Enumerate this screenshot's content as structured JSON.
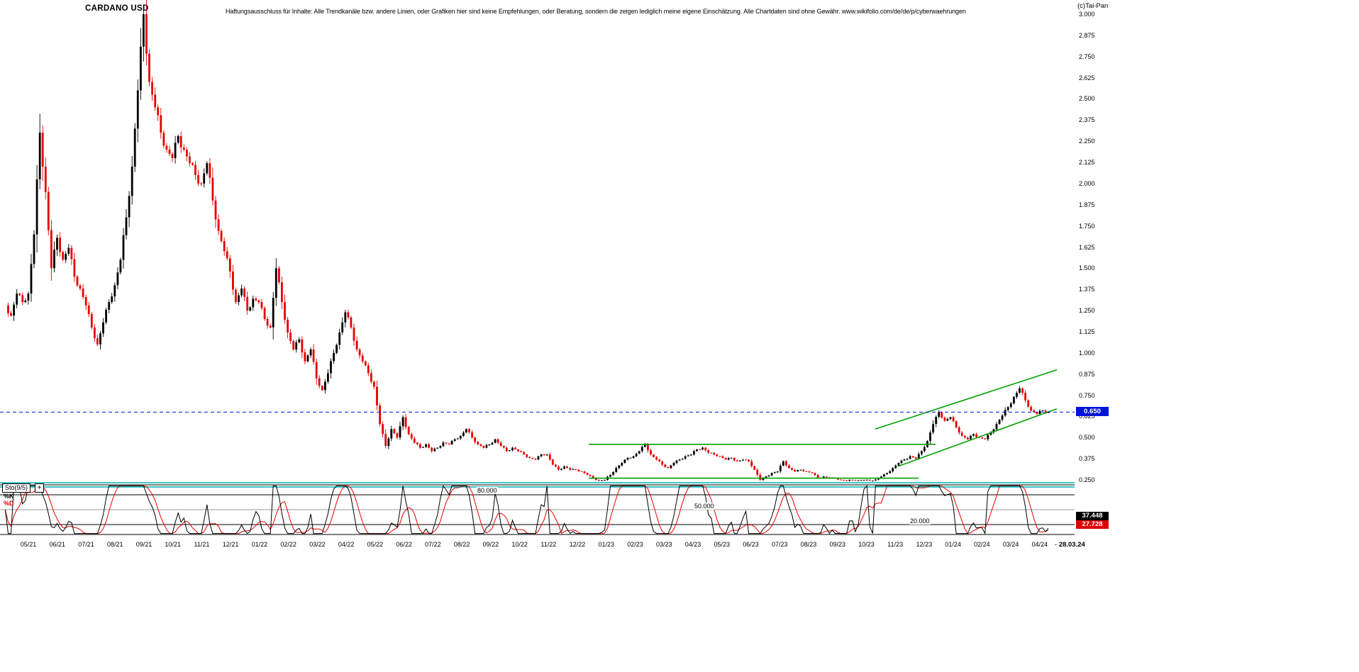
{
  "header": {
    "title": "CARDANO USD",
    "disclaimer": "Haftungsausschluss für Inhalte: Alle Trendkanäle bzw. andere Linien, oder Grafiken hier sind keine Empfehlungen, oder Beratung, sondern die zeigen lediglich meine eigene Einschätzung. Alle Chartdaten sind ohne Gewähr.  www.wikifolio.com/de/de/p/cyberwaehrungen",
    "copyright": "(c)Tai-Pan"
  },
  "price_axis": {
    "current_price_label": "0.650",
    "ticks": [
      "3.000",
      "2.875",
      "2.750",
      "2.625",
      "2.500",
      "2.375",
      "2.250",
      "2.125",
      "2.000",
      "1.875",
      "1.750",
      "1.625",
      "1.500",
      "1.375",
      "1.250",
      "1.125",
      "1.000",
      "0.875",
      "0.750",
      "0.625",
      "0.500",
      "0.375",
      "0.250"
    ]
  },
  "x_axis": {
    "labels": [
      "05/21",
      "06/21",
      "07/21",
      "08/21",
      "09/21",
      "10/21",
      "11/21",
      "12/21",
      "01/22",
      "02/22",
      "03/22",
      "04/22",
      "05/22",
      "06/22",
      "07/22",
      "08/22",
      "09/22",
      "10/22",
      "11/22",
      "12/22",
      "01/23",
      "02/23",
      "03/23",
      "04/23",
      "05/23",
      "06/23",
      "07/23",
      "08/23",
      "09/23",
      "10/23",
      "11/23",
      "12/23",
      "01/24",
      "02/24",
      "03/24",
      "04/24"
    ],
    "separator": "-",
    "end_date": "28.03.24"
  },
  "indicator": {
    "label": "Sto(9/5)",
    "expand_label": "+",
    "k_label": "%K",
    "d_label": "%D",
    "levels": [
      "80.000",
      "50.000",
      "20.000"
    ],
    "k_value": "37.448",
    "d_value": "27.728"
  },
  "chart_data": {
    "type": "candlestick",
    "title": "CARDANO USD",
    "x_unit": "months from 05/21",
    "x_labels": [
      "05/21",
      "06/21",
      "07/21",
      "08/21",
      "09/21",
      "10/21",
      "11/21",
      "12/21",
      "01/22",
      "02/22",
      "03/22",
      "04/22",
      "05/22",
      "06/22",
      "07/22",
      "08/22",
      "09/22",
      "10/22",
      "11/22",
      "12/22",
      "01/23",
      "02/23",
      "03/23",
      "04/23",
      "05/23",
      "06/23",
      "07/23",
      "08/23",
      "09/23",
      "10/23",
      "11/23",
      "12/23",
      "01/24",
      "02/24",
      "03/24",
      "04/24"
    ],
    "ylim": [
      0.25,
      3.0
    ],
    "closes": [
      1.28,
      1.22,
      1.35,
      1.3,
      1.35,
      1.7,
      2.3,
      1.95,
      1.5,
      1.68,
      1.55,
      1.62,
      1.45,
      1.38,
      1.28,
      1.15,
      1.05,
      1.18,
      1.3,
      1.4,
      1.55,
      1.8,
      2.1,
      2.55,
      3.0,
      2.6,
      2.45,
      2.3,
      2.2,
      2.15,
      2.28,
      2.2,
      2.12,
      2.05,
      2.0,
      2.12,
      1.9,
      1.72,
      1.6,
      1.48,
      1.3,
      1.38,
      1.25,
      1.32,
      1.3,
      1.2,
      1.15,
      1.5,
      1.3,
      1.12,
      1.02,
      1.08,
      0.95,
      1.02,
      0.85,
      0.78,
      0.88,
      1.0,
      1.12,
      1.24,
      1.15,
      1.02,
      0.95,
      0.88,
      0.8,
      0.58,
      0.45,
      0.55,
      0.5,
      0.62,
      0.52,
      0.47,
      0.44,
      0.46,
      0.42,
      0.44,
      0.47,
      0.46,
      0.49,
      0.51,
      0.55,
      0.5,
      0.46,
      0.44,
      0.46,
      0.49,
      0.45,
      0.42,
      0.44,
      0.42,
      0.4,
      0.38,
      0.37,
      0.4,
      0.4,
      0.34,
      0.31,
      0.33,
      0.31,
      0.31,
      0.3,
      0.28,
      0.26,
      0.245,
      0.25,
      0.28,
      0.32,
      0.35,
      0.38,
      0.39,
      0.42,
      0.46,
      0.4,
      0.37,
      0.34,
      0.32,
      0.35,
      0.37,
      0.39,
      0.4,
      0.43,
      0.44,
      0.41,
      0.4,
      0.39,
      0.37,
      0.38,
      0.36,
      0.37,
      0.36,
      0.31,
      0.25,
      0.27,
      0.29,
      0.3,
      0.36,
      0.32,
      0.3,
      0.31,
      0.3,
      0.29,
      0.26,
      0.27,
      0.26,
      0.26,
      0.25,
      0.245,
      0.25,
      0.248,
      0.25,
      0.246,
      0.252,
      0.27,
      0.29,
      0.32,
      0.35,
      0.37,
      0.39,
      0.375,
      0.42,
      0.48,
      0.58,
      0.65,
      0.6,
      0.62,
      0.56,
      0.51,
      0.49,
      0.52,
      0.5,
      0.49,
      0.53,
      0.58,
      0.63,
      0.68,
      0.74,
      0.79,
      0.72,
      0.66,
      0.64,
      0.66,
      0.65
    ],
    "overlays": {
      "price_line": {
        "value": 0.65,
        "color": "#0013d9",
        "style": "dashed"
      },
      "horizontal_lines": [
        {
          "price": 0.46,
          "from_month": 19.4,
          "to_month": 31.4,
          "color": "#00a000"
        },
        {
          "price": 0.26,
          "from_month": 19.4,
          "to_month": 30.8,
          "color": "#00a000"
        }
      ],
      "trend_lines": [
        {
          "from": [
            29.3,
            0.55
          ],
          "to": [
            35.6,
            0.9
          ],
          "color": "#00a000"
        },
        {
          "from": [
            30.1,
            0.33
          ],
          "to": [
            35.6,
            0.67
          ],
          "color": "#00a000"
        }
      ]
    },
    "stochastic": {
      "name": "Sto(9/5)",
      "k_period": 9,
      "d_period": 5,
      "k_last": 37.448,
      "d_last": 27.728,
      "levels": [
        80,
        50,
        20
      ]
    },
    "colors": {
      "candle_up": "#000000",
      "candle_down": "#e60000",
      "trend": "#00a000",
      "price_marker": "#0013d9",
      "separator_teal": "#00b2b2",
      "sto_k": "#000000",
      "sto_d": "#e60000"
    }
  }
}
